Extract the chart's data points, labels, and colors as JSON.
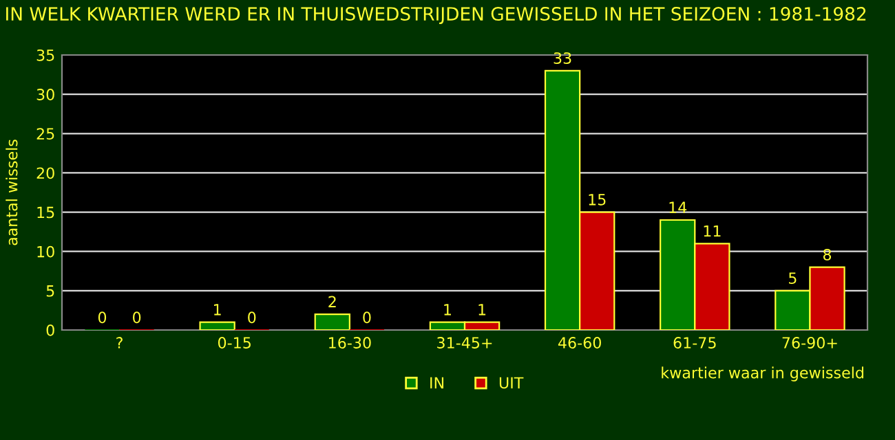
{
  "chart_data": {
    "type": "bar",
    "title": "IN WELK KWARTIER WERD ER IN THUISWEDSTRIJDEN GEWISSELD IN HET SEIZOEN : 1981-1982",
    "xlabel": "kwartier waar in gewisseld",
    "ylabel": "aantal wissels",
    "categories": [
      "?",
      "0-15",
      "16-30",
      "31-45+",
      "46-60",
      "61-75",
      "76-90+"
    ],
    "series": [
      {
        "name": "IN",
        "color": "#008000",
        "values": [
          0,
          1,
          2,
          1,
          33,
          14,
          5
        ]
      },
      {
        "name": "UIT",
        "color": "#cc0000",
        "values": [
          0,
          0,
          0,
          1,
          15,
          11,
          8
        ]
      }
    ],
    "ylim": [
      0,
      35
    ],
    "yticks": [
      0,
      5,
      10,
      15,
      20,
      25,
      30,
      35
    ],
    "grid": "y",
    "legend": "bottom",
    "data_labels": true
  }
}
